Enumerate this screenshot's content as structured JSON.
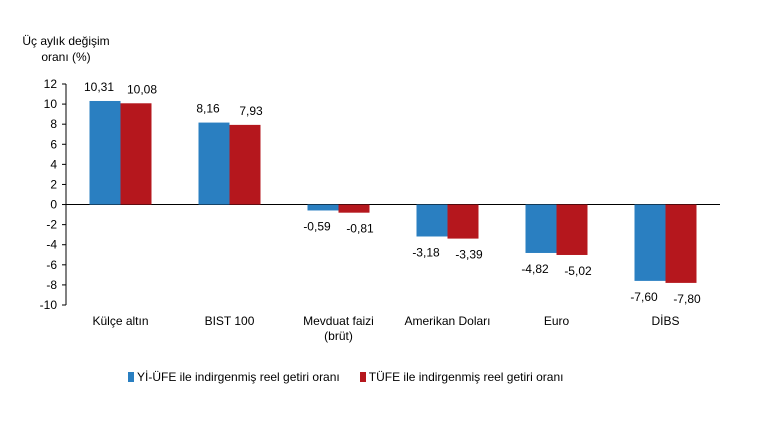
{
  "chart_data": {
    "type": "bar",
    "ylabel_lines": [
      "Üç aylık değişim",
      "oranı (%)"
    ],
    "ylim": [
      -10,
      12
    ],
    "yticks": [
      -10,
      -8,
      -6,
      -4,
      -2,
      0,
      2,
      4,
      6,
      8,
      10,
      12
    ],
    "categories": [
      [
        "Külçe altın"
      ],
      [
        "BIST 100"
      ],
      [
        "Mevduat faizi",
        "(brüt)"
      ],
      [
        "Amerikan Doları"
      ],
      [
        "Euro"
      ],
      [
        "DİBS"
      ]
    ],
    "series": [
      {
        "name": "Yİ-ÜFE ile indirgenmiş reel getiri oranı",
        "color": "#2a7fc1",
        "values": [
          10.31,
          8.16,
          -0.59,
          -3.18,
          -4.82,
          -7.6
        ],
        "labels": [
          "10,31",
          "8,16",
          "-0,59",
          "-3,18",
          "-4,82",
          "-7,60"
        ]
      },
      {
        "name": "TÜFE ile indirgenmiş reel getiri oranı",
        "color": "#b5171d",
        "values": [
          10.08,
          7.93,
          -0.81,
          -3.39,
          -5.02,
          -7.8
        ],
        "labels": [
          "10,08",
          "7,93",
          "-0,81",
          "-3,39",
          "-5,02",
          "-7,80"
        ]
      }
    ],
    "grid": false,
    "legend": "bottom"
  }
}
